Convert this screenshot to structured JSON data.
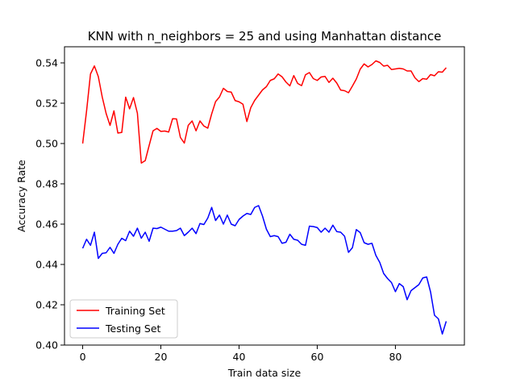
{
  "chart_data": {
    "type": "line",
    "title": "KNN with n_neighbors = 25 and using Manhattan distance",
    "xlabel": "Train data size",
    "ylabel": "Accuracy Rate",
    "xlim": [
      -4.65,
      97.65
    ],
    "ylim": [
      0.4,
      0.548
    ],
    "xticks": [
      0,
      20,
      40,
      60,
      80
    ],
    "xtick_labels": [
      "0",
      "20",
      "40",
      "60",
      "80"
    ],
    "yticks": [
      0.4,
      0.42,
      0.44,
      0.46,
      0.48,
      0.5,
      0.52,
      0.54
    ],
    "ytick_labels": [
      "0.40",
      "0.42",
      "0.44",
      "0.46",
      "0.48",
      "0.50",
      "0.52",
      "0.54"
    ],
    "grid": false,
    "legend_position": "lower-left",
    "series": [
      {
        "name": "Training Set",
        "color": "#ff0000",
        "values": [
          0.5,
          0.5162,
          0.5345,
          0.5385,
          0.5332,
          0.5231,
          0.5149,
          0.509,
          0.5162,
          0.5052,
          0.5055,
          0.523,
          0.5172,
          0.5228,
          0.515,
          0.4903,
          0.4915,
          0.499,
          0.5063,
          0.5075,
          0.506,
          0.5062,
          0.5057,
          0.5123,
          0.5122,
          0.503,
          0.5002,
          0.509,
          0.5112,
          0.5063,
          0.5112,
          0.5087,
          0.5076,
          0.5147,
          0.5208,
          0.5231,
          0.5274,
          0.5258,
          0.5255,
          0.5213,
          0.5207,
          0.5195,
          0.5109,
          0.5178,
          0.5214,
          0.524,
          0.5266,
          0.5282,
          0.5313,
          0.5321,
          0.5345,
          0.5331,
          0.5305,
          0.5286,
          0.5337,
          0.5298,
          0.5287,
          0.5341,
          0.5352,
          0.5322,
          0.5313,
          0.533,
          0.5333,
          0.5303,
          0.5324,
          0.53,
          0.5265,
          0.5262,
          0.5252,
          0.5285,
          0.532,
          0.5369,
          0.5395,
          0.538,
          0.5392,
          0.541,
          0.5402,
          0.5384,
          0.5388,
          0.5367,
          0.537,
          0.5373,
          0.537,
          0.536,
          0.536,
          0.5326,
          0.5307,
          0.5322,
          0.5319,
          0.5342,
          0.5336,
          0.5356,
          0.5354,
          0.5376
        ]
      },
      {
        "name": "Testing Set",
        "color": "#0000ff",
        "values": [
          0.448,
          0.4525,
          0.4495,
          0.456,
          0.443,
          0.4455,
          0.4458,
          0.4485,
          0.4455,
          0.45,
          0.453,
          0.4518,
          0.4565,
          0.454,
          0.458,
          0.453,
          0.456,
          0.4515,
          0.458,
          0.4578,
          0.4585,
          0.4575,
          0.4565,
          0.4565,
          0.4568,
          0.458,
          0.4543,
          0.456,
          0.458,
          0.4553,
          0.4603,
          0.4598,
          0.463,
          0.4683,
          0.4618,
          0.4645,
          0.46,
          0.4645,
          0.46,
          0.4592,
          0.4623,
          0.464,
          0.4653,
          0.4648,
          0.4683,
          0.4692,
          0.464,
          0.4575,
          0.4538,
          0.4543,
          0.4538,
          0.4505,
          0.451,
          0.455,
          0.4525,
          0.452,
          0.45,
          0.4495,
          0.459,
          0.4588,
          0.4583,
          0.456,
          0.458,
          0.456,
          0.4595,
          0.4563,
          0.456,
          0.454,
          0.446,
          0.4483,
          0.4573,
          0.4558,
          0.4508,
          0.45,
          0.4505,
          0.4445,
          0.441,
          0.4355,
          0.433,
          0.431,
          0.4265,
          0.4305,
          0.429,
          0.4225,
          0.427,
          0.4285,
          0.43,
          0.4333,
          0.4338,
          0.4263,
          0.4148,
          0.413,
          0.4055,
          0.4118
        ]
      }
    ]
  }
}
